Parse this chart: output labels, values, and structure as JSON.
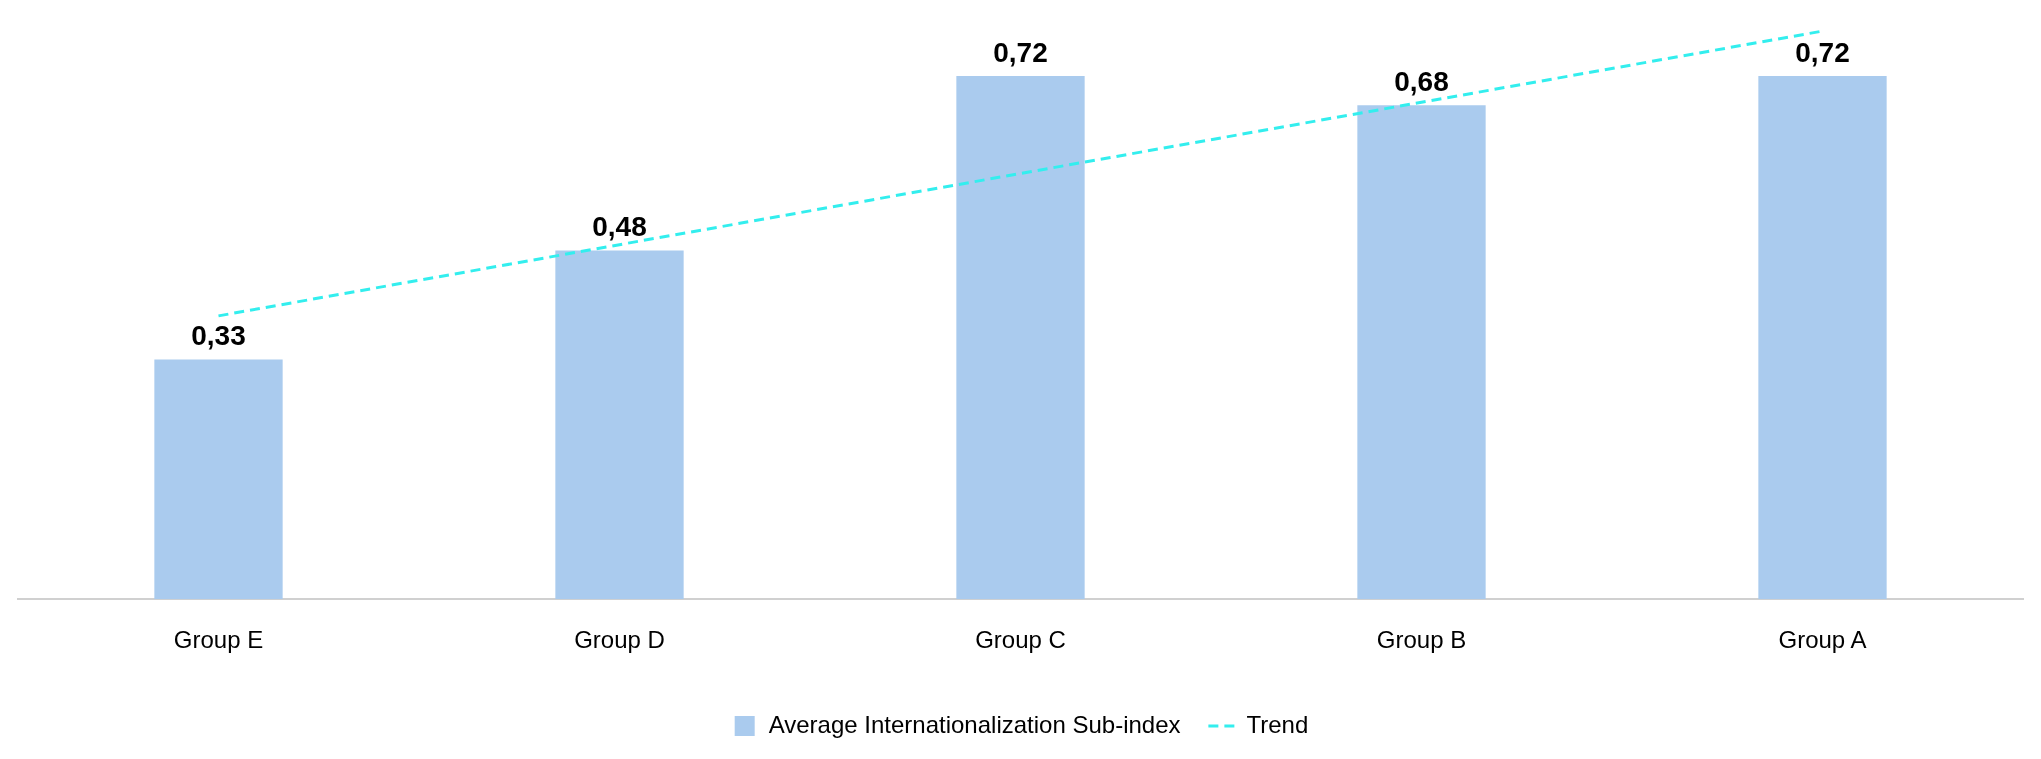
{
  "chart_data": {
    "type": "bar",
    "categories": [
      "Group E",
      "Group D",
      "Group C",
      "Group B",
      "Group A"
    ],
    "series": [
      {
        "name": "Average Internationalization Sub-index",
        "color": "#aacbee",
        "values": [
          0.33,
          0.48,
          0.72,
          0.68,
          0.72
        ],
        "value_labels": [
          "0,33",
          "0,48",
          "0,72",
          "0,68",
          "0,72"
        ]
      },
      {
        "name": "Trend",
        "type": "line",
        "color": "#33eeee",
        "line_style": "dashed",
        "marker": "none",
        "values": [
          0.39,
          0.488,
          0.586,
          0.684,
          0.782
        ]
      }
    ],
    "grid": false,
    "legend": "bottom",
    "tick_labels": "x"
  }
}
